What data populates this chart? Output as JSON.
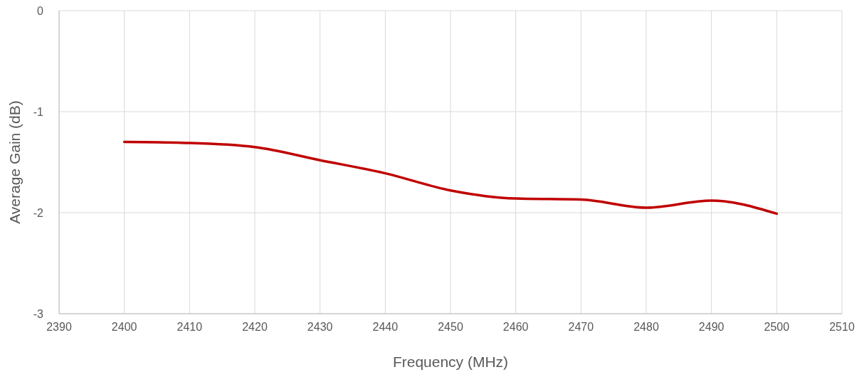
{
  "chart_data": {
    "type": "line",
    "xlabel": "Frequency (MHz)",
    "ylabel": "Average Gain (dB)",
    "x": [
      2400,
      2410,
      2420,
      2430,
      2440,
      2450,
      2460,
      2470,
      2480,
      2490,
      2500
    ],
    "series": [
      {
        "color": "#c00000",
        "values": [
          -1.3,
          -1.31,
          -1.35,
          -1.48,
          -1.61,
          -1.78,
          -1.86,
          -1.87,
          -1.95,
          -1.88,
          -2.01
        ]
      }
    ],
    "xlim": [
      2390,
      2510
    ],
    "xticks": [
      2390,
      2400,
      2410,
      2420,
      2430,
      2440,
      2450,
      2460,
      2470,
      2480,
      2490,
      2500,
      2510
    ],
    "ylim": [
      -3,
      0
    ],
    "yticks": [
      -3,
      -2,
      -1,
      0
    ],
    "grid": true,
    "marker": "none",
    "line_style": "solid"
  }
}
